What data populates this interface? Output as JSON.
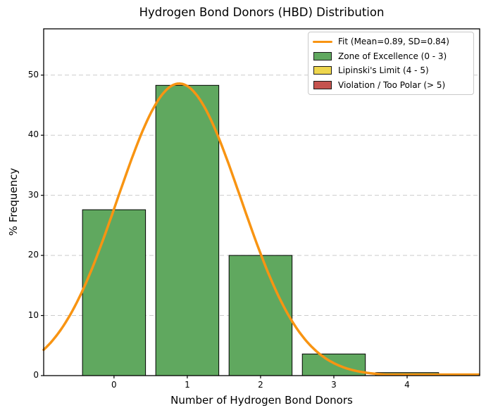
{
  "chart_data": {
    "type": "bar",
    "title": "Hydrogen Bond Donors (HBD) Distribution",
    "xlabel": "Number of Hydrogen Bond Donors",
    "ylabel": "% Frequency",
    "categories": [
      0,
      1,
      2,
      3,
      4
    ],
    "values": [
      27.6,
      48.3,
      20.0,
      3.6,
      0.5
    ],
    "bar_width_units": 0.86,
    "xlim": [
      -0.96,
      4.99
    ],
    "ylim": [
      0,
      57.7
    ],
    "xticks": [
      0,
      1,
      2,
      3,
      4
    ],
    "yticks": [
      0,
      10,
      20,
      30,
      40,
      50
    ],
    "grid": "horizontal-dashed",
    "legend_position": "upper-right",
    "fit_curve": {
      "shape": "gaussian",
      "mean": 0.89,
      "sd": 0.84,
      "peak_percent": 48.6,
      "label": "Fit (Mean=0.89, SD=0.84)"
    },
    "legend": [
      {
        "name": "fit",
        "label": "Fit (Mean=0.89, SD=0.84)",
        "swatch": "line",
        "color": "#f89412"
      },
      {
        "name": "zone-of-excellence",
        "label": "Zone of Excellence (0 - 3)",
        "swatch": "patch",
        "color": "#60a85f"
      },
      {
        "name": "lipinski-limit",
        "label": "Lipinski's Limit (4 - 5)",
        "swatch": "patch",
        "color": "#eed64e"
      },
      {
        "name": "violation-too-polar",
        "label": "Violation / Too Polar (> 5)",
        "swatch": "patch",
        "color": "#c5534e"
      }
    ],
    "colors": {
      "bar_fill": "#60a85f",
      "bar_edge": "#000000",
      "fit_line": "#f89412",
      "grid": "#cccccc",
      "axis": "#000000",
      "background": "#ffffff"
    }
  }
}
